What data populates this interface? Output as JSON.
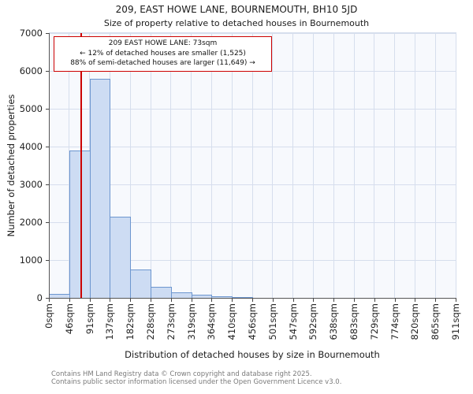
{
  "title": "209, EAST HOWE LANE, BOURNEMOUTH, BH10 5JD",
  "subtitle": "Size of property relative to detached houses in Bournemouth",
  "annotation": {
    "line1": "209 EAST HOWE LANE: 73sqm",
    "line2": "← 12% of detached houses are smaller (1,525)",
    "line3": "88% of semi-detached houses are larger (11,649) →"
  },
  "footer": {
    "line1": "Contains HM Land Registry data © Crown copyright and database right 2025.",
    "line2": "Contains public sector information licensed under the Open Government Licence v3.0."
  },
  "chart_data": {
    "type": "bar",
    "title": "209, EAST HOWE LANE, BOURNEMOUTH, BH10 5JD",
    "subtitle": "Size of property relative to detached houses in Bournemouth",
    "xlabel": "Distribution of detached houses by size in Bournemouth",
    "ylabel": "Number of detached properties",
    "categories": [
      "0sqm",
      "46sqm",
      "91sqm",
      "137sqm",
      "182sqm",
      "228sqm",
      "273sqm",
      "319sqm",
      "364sqm",
      "410sqm",
      "456sqm",
      "501sqm",
      "547sqm",
      "592sqm",
      "638sqm",
      "683sqm",
      "729sqm",
      "774sqm",
      "820sqm",
      "865sqm",
      "911sqm"
    ],
    "values": [
      100,
      3900,
      5800,
      2150,
      750,
      300,
      150,
      75,
      40,
      15,
      0,
      0,
      0,
      0,
      0,
      0,
      0,
      0,
      0,
      0
    ],
    "ylim": [
      0,
      7000
    ],
    "yticks": [
      0,
      1000,
      2000,
      3000,
      4000,
      5000,
      6000,
      7000
    ],
    "grid": "on",
    "legend": "none",
    "marker": {
      "label": "209 EAST HOWE LANE",
      "value_sqm": 73,
      "axis_max_sqm": 911,
      "color": "#cc0000"
    },
    "colors": {
      "bar_fill": "#cddcf3",
      "bar_edge": "#6d96cf",
      "grid": "#d6deed",
      "plot_bg": "#f7f9fd",
      "marker_line": "#cc0000"
    }
  }
}
